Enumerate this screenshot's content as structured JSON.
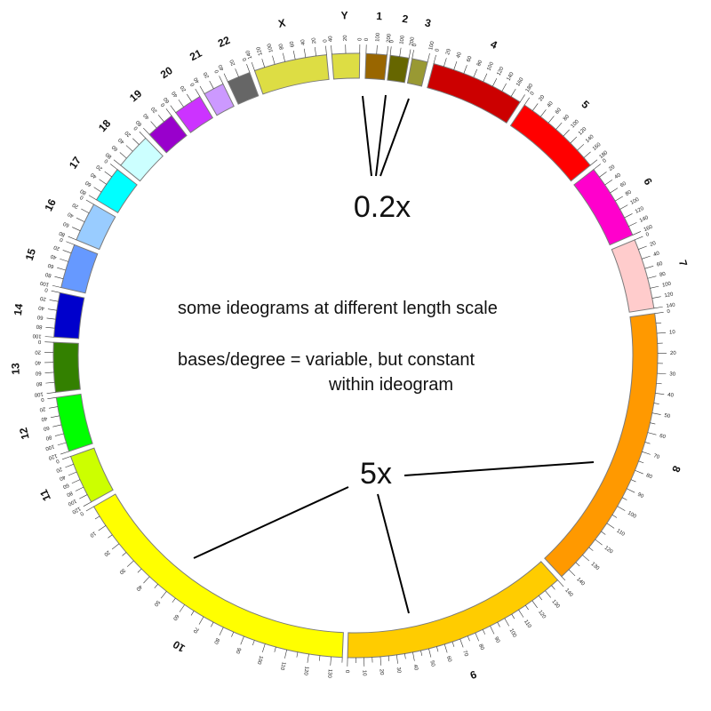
{
  "caption": {
    "line1": "some ideograms at different length scale",
    "line2": "bases/degree = variable, but constant",
    "line3": "within ideogram"
  },
  "scale_labels": {
    "small": "0.2x",
    "large": "5x"
  },
  "ideograms": [
    {
      "id": "1",
      "label": "1",
      "color": "#996600",
      "start_deg": 2.0,
      "end_deg": 6.0,
      "tick_max": 200,
      "tick_step": 100,
      "ticks_reversed": false
    },
    {
      "id": "2",
      "label": "2",
      "color": "#666600",
      "start_deg": 6.6,
      "end_deg": 10.2,
      "tick_max": 200,
      "tick_step": 100,
      "ticks_reversed": false
    },
    {
      "id": "3",
      "label": "3",
      "color": "#999933",
      "start_deg": 10.8,
      "end_deg": 13.8,
      "tick_max": 100,
      "tick_step": 100,
      "ticks_reversed": false
    },
    {
      "id": "4",
      "label": "4",
      "color": "#cc0000",
      "start_deg": 15.0,
      "end_deg": 33.0,
      "tick_max": 180,
      "tick_step": 20,
      "ticks_reversed": false
    },
    {
      "id": "5",
      "label": "5",
      "color": "#ff0000",
      "start_deg": 34.0,
      "end_deg": 51.0,
      "tick_max": 180,
      "tick_step": 20,
      "ticks_reversed": false
    },
    {
      "id": "6",
      "label": "6",
      "color": "#ff00cc",
      "start_deg": 52.0,
      "end_deg": 66.5,
      "tick_max": 160,
      "tick_step": 20,
      "ticks_reversed": false
    },
    {
      "id": "7",
      "label": "7",
      "color": "#ffcccc",
      "start_deg": 67.5,
      "end_deg": 81.0,
      "tick_max": 140,
      "tick_step": 20,
      "ticks_reversed": false
    },
    {
      "id": "8",
      "label": "8",
      "color": "#ff9900",
      "start_deg": 82.0,
      "end_deg": 137.0,
      "tick_max": 145,
      "tick_step": 5,
      "ticks_reversed": false
    },
    {
      "id": "9",
      "label": "9",
      "color": "#ffcc00",
      "start_deg": 138.0,
      "end_deg": 181.5,
      "tick_max": 140,
      "tick_step": 5,
      "ticks_reversed": true
    },
    {
      "id": "10",
      "label": "10",
      "color": "#ffff00",
      "start_deg": 182.5,
      "end_deg": 240.0,
      "tick_max": 135,
      "tick_step": 5,
      "ticks_reversed": true
    },
    {
      "id": "11",
      "label": "11",
      "color": "#ccff00",
      "start_deg": 241.0,
      "end_deg": 250.5,
      "tick_max": 120,
      "tick_step": 20,
      "ticks_reversed": true
    },
    {
      "id": "12",
      "label": "12",
      "color": "#00ff00",
      "start_deg": 251.5,
      "end_deg": 262.0,
      "tick_max": 120,
      "tick_step": 20,
      "ticks_reversed": true
    },
    {
      "id": "13",
      "label": "13",
      "color": "#338000",
      "start_deg": 263.0,
      "end_deg": 272.5,
      "tick_max": 100,
      "tick_step": 20,
      "ticks_reversed": true
    },
    {
      "id": "14",
      "label": "14",
      "color": "#0000cc",
      "start_deg": 273.5,
      "end_deg": 282.0,
      "tick_max": 100,
      "tick_step": 20,
      "ticks_reversed": true
    },
    {
      "id": "15",
      "label": "15",
      "color": "#6699ff",
      "start_deg": 283.0,
      "end_deg": 291.5,
      "tick_max": 100,
      "tick_step": 20,
      "ticks_reversed": true
    },
    {
      "id": "16",
      "label": "16",
      "color": "#99ccff",
      "start_deg": 292.5,
      "end_deg": 300.0,
      "tick_max": 80,
      "tick_step": 20,
      "ticks_reversed": true
    },
    {
      "id": "17",
      "label": "17",
      "color": "#00ffff",
      "start_deg": 301.0,
      "end_deg": 308.0,
      "tick_max": 80,
      "tick_step": 20,
      "ticks_reversed": true
    },
    {
      "id": "18",
      "label": "18",
      "color": "#ccffff",
      "start_deg": 309.0,
      "end_deg": 316.0,
      "tick_max": 80,
      "tick_step": 20,
      "ticks_reversed": true
    },
    {
      "id": "19",
      "label": "19",
      "color": "#9900cc",
      "start_deg": 317.0,
      "end_deg": 322.5,
      "tick_max": 60,
      "tick_step": 20,
      "ticks_reversed": true
    },
    {
      "id": "20",
      "label": "20",
      "color": "#cc33ff",
      "start_deg": 323.5,
      "end_deg": 329.0,
      "tick_max": 60,
      "tick_step": 20,
      "ticks_reversed": true
    },
    {
      "id": "21",
      "label": "21",
      "color": "#cc99ff",
      "start_deg": 330.0,
      "end_deg": 334.0,
      "tick_max": 40,
      "tick_step": 20,
      "ticks_reversed": true
    },
    {
      "id": "22",
      "label": "22",
      "color": "#666666",
      "start_deg": 335.0,
      "end_deg": 339.5,
      "tick_max": 40,
      "tick_step": 20,
      "ticks_reversed": true
    },
    {
      "id": "X",
      "label": "X",
      "color": "#dddd44",
      "start_deg": 340.5,
      "end_deg": 354.5,
      "tick_max": 140,
      "tick_step": 20,
      "ticks_reversed": true
    },
    {
      "id": "Y",
      "label": "Y",
      "color": "#dddd44",
      "start_deg": 355.5,
      "end_deg": 360.8,
      "tick_max": 40,
      "tick_step": 20,
      "ticks_reversed": true
    }
  ]
}
